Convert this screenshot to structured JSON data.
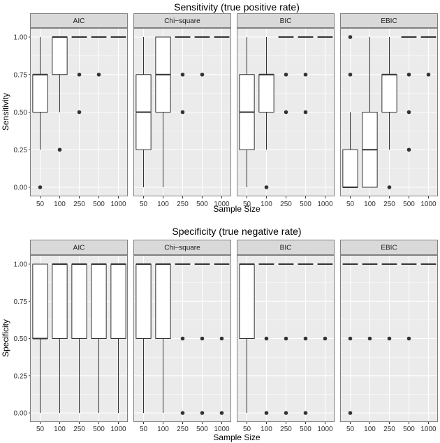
{
  "chart_data": [
    {
      "type": "boxplot",
      "title": "Sensitivity (true positive rate)",
      "xlabel": "Sample Size",
      "ylabel": "Sensitivity",
      "categories": [
        "50",
        "100",
        "250",
        "500",
        "1000"
      ],
      "ylim": [
        0,
        1
      ],
      "yticks": [
        "0.00",
        "0.25",
        "0.50",
        "0.75",
        "1.00"
      ],
      "facets": [
        {
          "name": "AIC",
          "boxes": [
            {
              "min": 0.25,
              "q1": 0.5,
              "median": 0.75,
              "q3": 0.75,
              "max": 1.0,
              "outliers": [
                0.0
              ]
            },
            {
              "min": 0.5,
              "q1": 0.75,
              "median": 1.0,
              "q3": 1.0,
              "max": 1.0,
              "outliers": [
                0.25
              ]
            },
            {
              "min": 1.0,
              "q1": 1.0,
              "median": 1.0,
              "q3": 1.0,
              "max": 1.0,
              "outliers": [
                0.75,
                0.5
              ]
            },
            {
              "min": 1.0,
              "q1": 1.0,
              "median": 1.0,
              "q3": 1.0,
              "max": 1.0,
              "outliers": [
                0.75
              ]
            },
            {
              "min": 1.0,
              "q1": 1.0,
              "median": 1.0,
              "q3": 1.0,
              "max": 1.0,
              "outliers": []
            }
          ]
        },
        {
          "name": "Chi−square",
          "boxes": [
            {
              "min": 0.0,
              "q1": 0.25,
              "median": 0.5,
              "q3": 0.75,
              "max": 1.0,
              "outliers": []
            },
            {
              "min": 0.0,
              "q1": 0.5,
              "median": 0.75,
              "q3": 1.0,
              "max": 1.0,
              "outliers": []
            },
            {
              "min": 1.0,
              "q1": 1.0,
              "median": 1.0,
              "q3": 1.0,
              "max": 1.0,
              "outliers": [
                0.75,
                0.5
              ]
            },
            {
              "min": 1.0,
              "q1": 1.0,
              "median": 1.0,
              "q3": 1.0,
              "max": 1.0,
              "outliers": [
                0.75
              ]
            },
            {
              "min": 1.0,
              "q1": 1.0,
              "median": 1.0,
              "q3": 1.0,
              "max": 1.0,
              "outliers": []
            }
          ]
        },
        {
          "name": "BIC",
          "boxes": [
            {
              "min": 0.0,
              "q1": 0.25,
              "median": 0.5,
              "q3": 0.75,
              "max": 1.0,
              "outliers": []
            },
            {
              "min": 0.25,
              "q1": 0.5,
              "median": 0.75,
              "q3": 0.75,
              "max": 1.0,
              "outliers": [
                0.0
              ]
            },
            {
              "min": 1.0,
              "q1": 1.0,
              "median": 1.0,
              "q3": 1.0,
              "max": 1.0,
              "outliers": [
                0.75,
                0.5
              ]
            },
            {
              "min": 1.0,
              "q1": 1.0,
              "median": 1.0,
              "q3": 1.0,
              "max": 1.0,
              "outliers": [
                0.75,
                0.5
              ]
            },
            {
              "min": 1.0,
              "q1": 1.0,
              "median": 1.0,
              "q3": 1.0,
              "max": 1.0,
              "outliers": []
            }
          ]
        },
        {
          "name": "EBIC",
          "boxes": [
            {
              "min": 0.0,
              "q1": 0.0,
              "median": 0.0,
              "q3": 0.25,
              "max": 0.5,
              "outliers": [
                1.0,
                0.75
              ]
            },
            {
              "min": 0.0,
              "q1": 0.0,
              "median": 0.25,
              "q3": 0.5,
              "max": 1.0,
              "outliers": []
            },
            {
              "min": 0.25,
              "q1": 0.5,
              "median": 0.75,
              "q3": 0.75,
              "max": 1.0,
              "outliers": [
                0.0
              ]
            },
            {
              "min": 1.0,
              "q1": 1.0,
              "median": 1.0,
              "q3": 1.0,
              "max": 1.0,
              "outliers": [
                0.75,
                0.5,
                0.25
              ]
            },
            {
              "min": 1.0,
              "q1": 1.0,
              "median": 1.0,
              "q3": 1.0,
              "max": 1.0,
              "outliers": [
                0.75
              ]
            }
          ]
        }
      ]
    },
    {
      "type": "boxplot",
      "title": "Specificity (true negative rate)",
      "xlabel": "Sample Size",
      "ylabel": "Specificity",
      "categories": [
        "50",
        "100",
        "250",
        "500",
        "1000"
      ],
      "ylim": [
        0,
        1
      ],
      "yticks": [
        "0.00",
        "0.25",
        "0.50",
        "0.75",
        "1.00"
      ],
      "facets": [
        {
          "name": "AIC",
          "boxes": [
            {
              "min": 0.0,
              "q1": 0.5,
              "median": 0.5,
              "q3": 1.0,
              "max": 1.0,
              "outliers": []
            },
            {
              "min": 0.0,
              "q1": 0.5,
              "median": 1.0,
              "q3": 1.0,
              "max": 1.0,
              "outliers": []
            },
            {
              "min": 0.0,
              "q1": 0.5,
              "median": 1.0,
              "q3": 1.0,
              "max": 1.0,
              "outliers": []
            },
            {
              "min": 0.0,
              "q1": 0.5,
              "median": 1.0,
              "q3": 1.0,
              "max": 1.0,
              "outliers": []
            },
            {
              "min": 0.0,
              "q1": 0.5,
              "median": 1.0,
              "q3": 1.0,
              "max": 1.0,
              "outliers": []
            }
          ]
        },
        {
          "name": "Chi−square",
          "boxes": [
            {
              "min": 0.0,
              "q1": 0.5,
              "median": 1.0,
              "q3": 1.0,
              "max": 1.0,
              "outliers": []
            },
            {
              "min": 0.0,
              "q1": 0.5,
              "median": 1.0,
              "q3": 1.0,
              "max": 1.0,
              "outliers": []
            },
            {
              "min": 1.0,
              "q1": 1.0,
              "median": 1.0,
              "q3": 1.0,
              "max": 1.0,
              "outliers": [
                0.5,
                0.0
              ]
            },
            {
              "min": 1.0,
              "q1": 1.0,
              "median": 1.0,
              "q3": 1.0,
              "max": 1.0,
              "outliers": [
                0.5,
                0.0
              ]
            },
            {
              "min": 1.0,
              "q1": 1.0,
              "median": 1.0,
              "q3": 1.0,
              "max": 1.0,
              "outliers": [
                0.5,
                0.0
              ]
            }
          ]
        },
        {
          "name": "BIC",
          "boxes": [
            {
              "min": 0.0,
              "q1": 0.5,
              "median": 1.0,
              "q3": 1.0,
              "max": 1.0,
              "outliers": []
            },
            {
              "min": 1.0,
              "q1": 1.0,
              "median": 1.0,
              "q3": 1.0,
              "max": 1.0,
              "outliers": [
                0.5,
                0.0
              ]
            },
            {
              "min": 1.0,
              "q1": 1.0,
              "median": 1.0,
              "q3": 1.0,
              "max": 1.0,
              "outliers": [
                0.5,
                0.0
              ]
            },
            {
              "min": 1.0,
              "q1": 1.0,
              "median": 1.0,
              "q3": 1.0,
              "max": 1.0,
              "outliers": [
                0.5,
                0.0
              ]
            },
            {
              "min": 1.0,
              "q1": 1.0,
              "median": 1.0,
              "q3": 1.0,
              "max": 1.0,
              "outliers": [
                0.5
              ]
            }
          ]
        },
        {
          "name": "EBIC",
          "boxes": [
            {
              "min": 1.0,
              "q1": 1.0,
              "median": 1.0,
              "q3": 1.0,
              "max": 1.0,
              "outliers": [
                0.5,
                0.0
              ]
            },
            {
              "min": 1.0,
              "q1": 1.0,
              "median": 1.0,
              "q3": 1.0,
              "max": 1.0,
              "outliers": [
                0.5
              ]
            },
            {
              "min": 1.0,
              "q1": 1.0,
              "median": 1.0,
              "q3": 1.0,
              "max": 1.0,
              "outliers": [
                0.5
              ]
            },
            {
              "min": 1.0,
              "q1": 1.0,
              "median": 1.0,
              "q3": 1.0,
              "max": 1.0,
              "outliers": [
                0.5
              ]
            },
            {
              "min": 1.0,
              "q1": 1.0,
              "median": 1.0,
              "q3": 1.0,
              "max": 1.0,
              "outliers": []
            }
          ]
        }
      ]
    }
  ],
  "colors": {
    "panel_background": "#ebebeb",
    "strip_background": "#d9d9d9",
    "strip_border": "#7f7f7f",
    "grid_major": "#ffffff",
    "box_fill": "#ffffff",
    "box_line": "#333333",
    "outlier": "#333333",
    "text": "#000000",
    "tick_text": "#333333"
  }
}
